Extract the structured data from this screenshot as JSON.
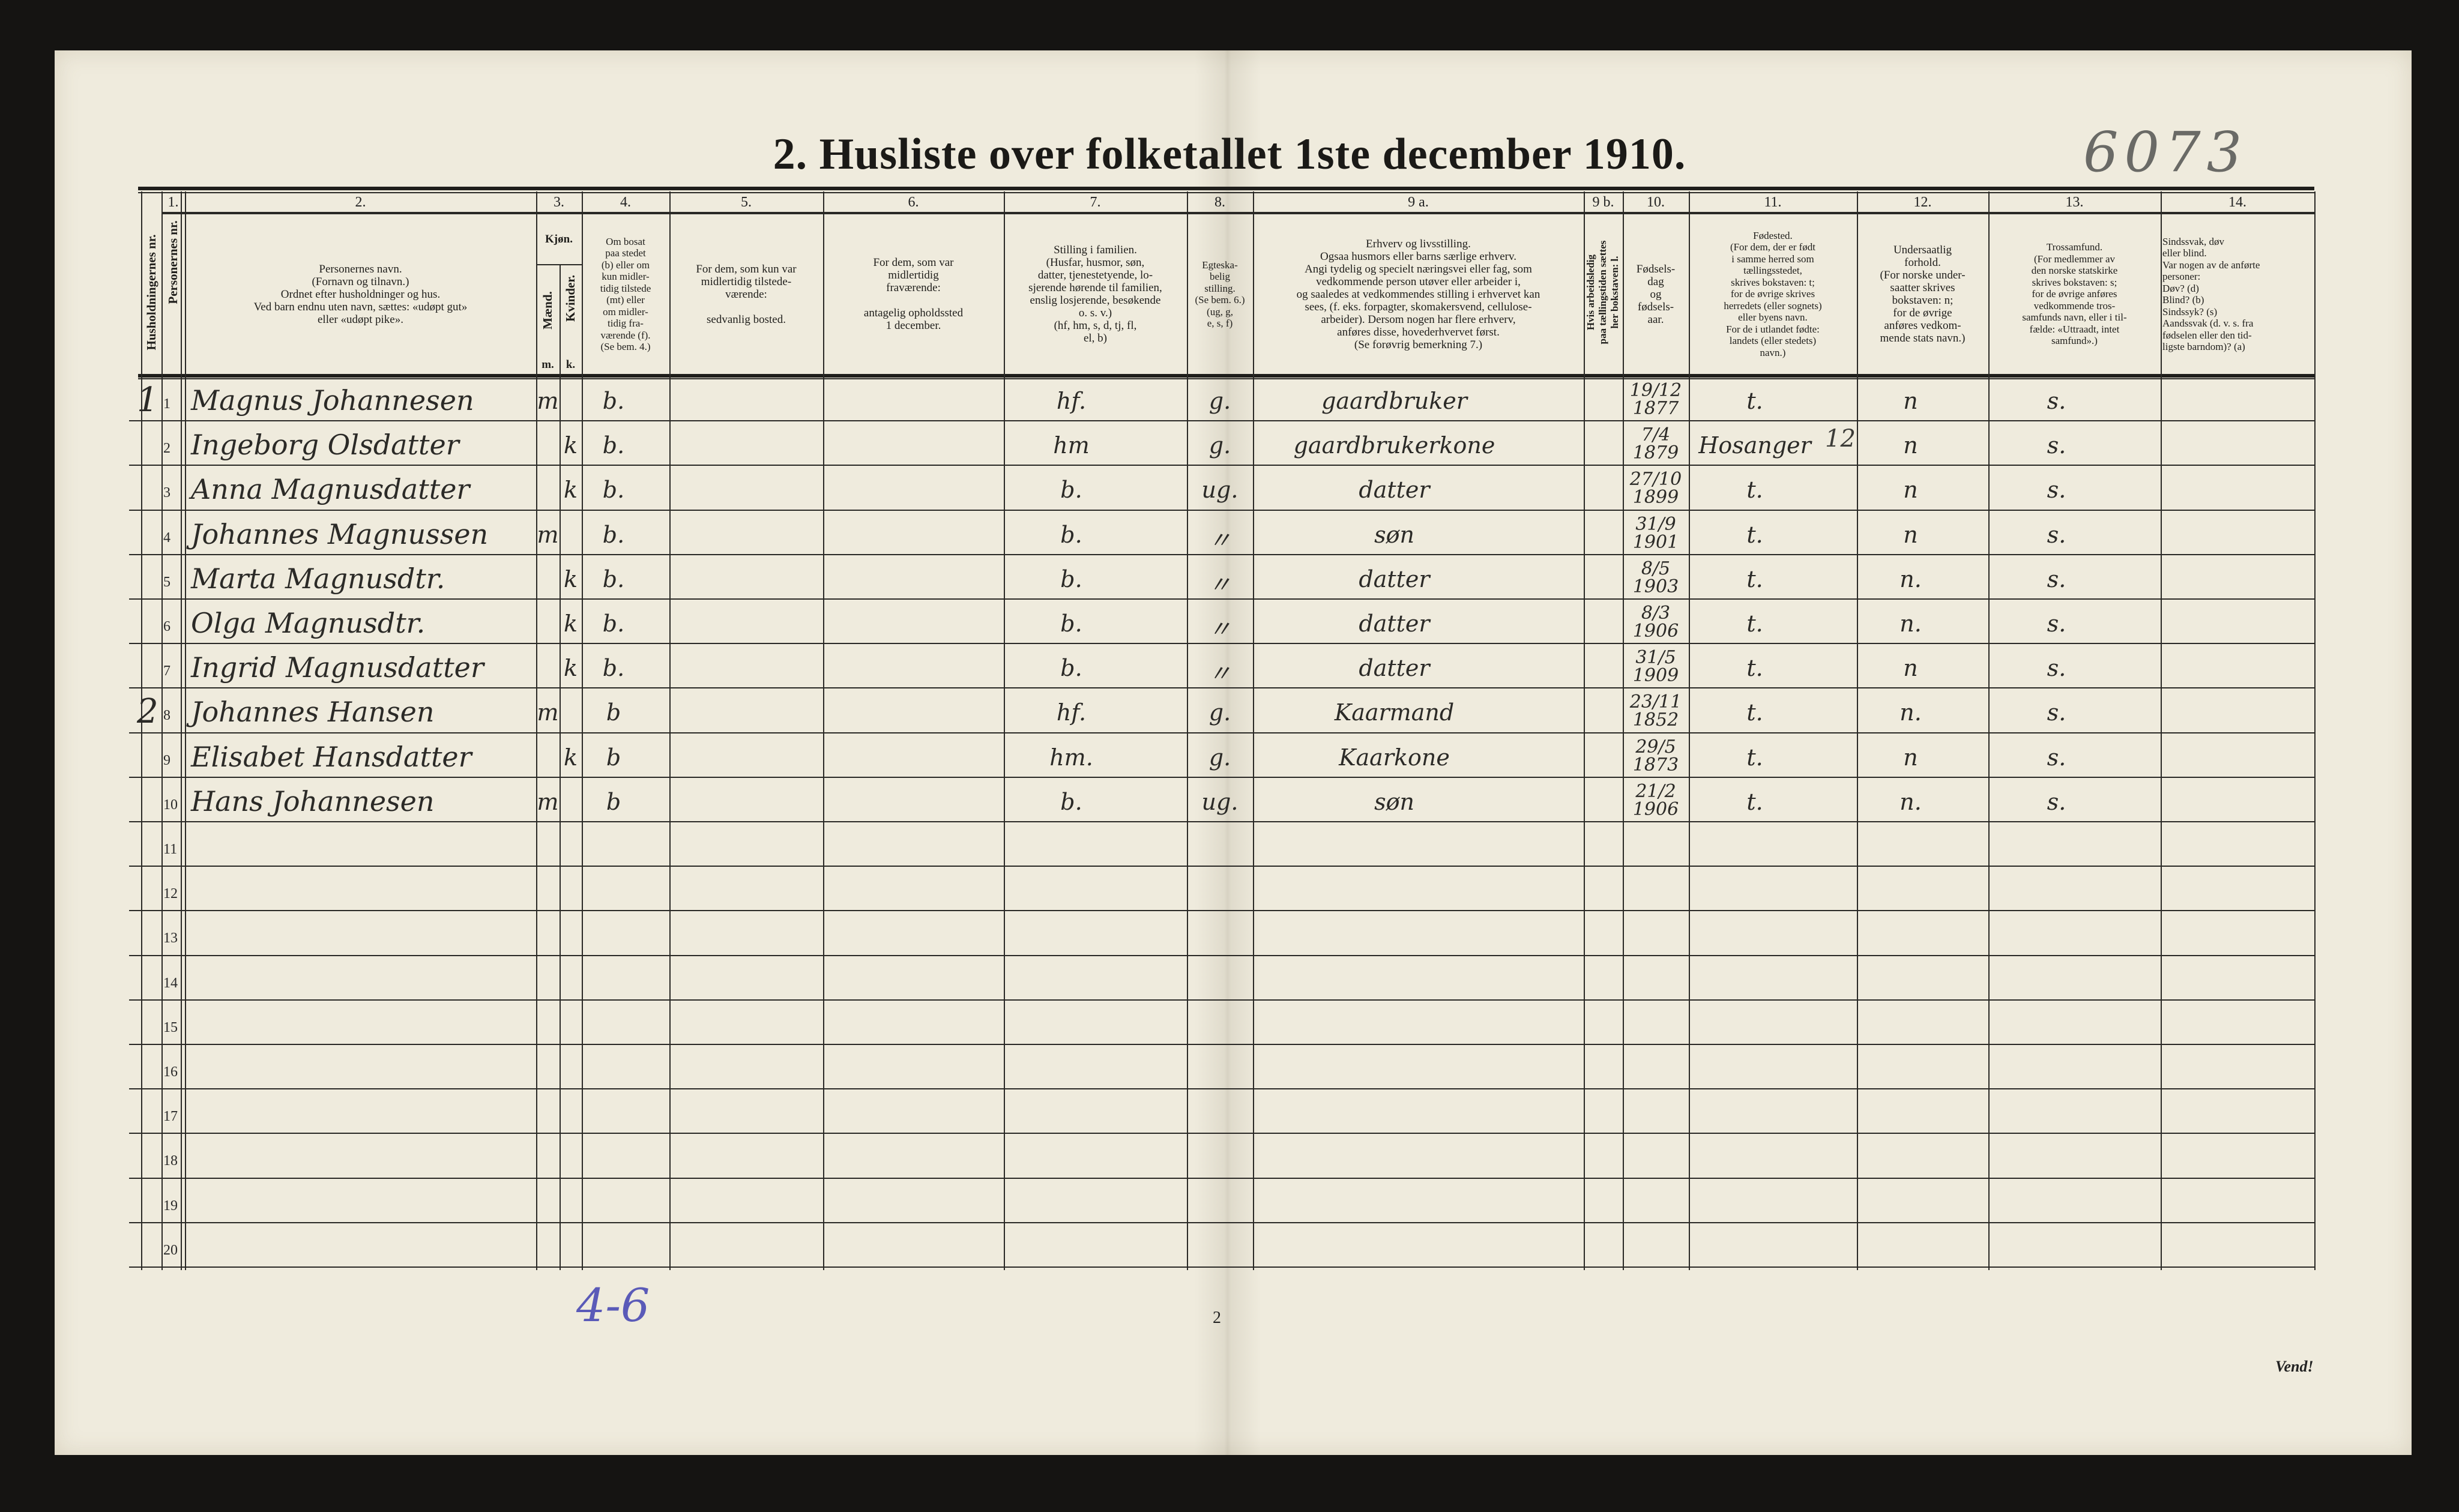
{
  "form": {
    "title": "2.  Husliste over folketallet 1ste december 1910.",
    "archive_number": "6073",
    "page_number": "2",
    "turn_over": "Vend!",
    "margin_note": "4-6",
    "paper_color": "#efebdd"
  },
  "columns": {
    "numbers": [
      "1.",
      "2.",
      "3.",
      "4.",
      "5.",
      "6.",
      "7.",
      "8.",
      "9 a.",
      "9 b.",
      "10.",
      "11.",
      "12.",
      "13.",
      "14."
    ],
    "household_nr": "Husholdningernes nr.",
    "person_nr": "Personernes nr.",
    "name": "Personernes navn.\n(Fornavn og tilnavn.)\nOrdnet efter husholdninger og hus.\nVed barn endnu uten navn, sættes: «udøpt gut»\neller «udøpt pike».",
    "sex": "Kjøn.",
    "male": "Mænd.",
    "female": "Kvinder.",
    "male_abbr": "m.",
    "female_abbr": "k.",
    "residence": "Om bosat\npaa stedet\n(b) eller om\nkun midler-\ntidig tilstede\n(mt) eller\nom midler-\ntidig fra-\nværende (f).\n(Se bem. 4.)",
    "temp_present": "For dem, som kun var\nmidlertidig tilstede-\nværende:\n\nsedvanlig bosted.",
    "temp_absent": "For dem, som var\nmidlertidig\nfraværende:\n\nantagelig opholdssted\n1 december.",
    "family_position": "Stilling i familien.\n(Husfar, husmor, søn,\ndatter, tjenestetyende, lo-\nsjerende hørende til familien,\nenslig losjerende, besøkende\no. s. v.)\n(hf, hm, s, d, tj, fl,\nel, b)",
    "marital": "Egteska-\nbelig\nstilling.\n(Se bem. 6.)\n(ug, g,\ne, s, f)",
    "occupation": "Erhverv og livsstilling.\nOgsaa husmors eller barns særlige erhverv.\nAngi tydelig og specielt næringsvei eller fag, som\nvedkommende person utøver eller arbeider i,\nog saaledes at vedkommendes stilling i erhvervet kan\nsees, (f. eks. forpagter, skomakersvend, cellulose-\narbeider). Dersom nogen har flere erhverv,\nanføres disse, hovederhvervet først.\n(Se forøvrig bemerkning 7.)",
    "unemployed": "Hvis arbeidsledig\npaa tællingstiden sættes\nher bokstaven: l.",
    "birth_date": "Fødsels-\ndag\nog\nfødsels-\naar.",
    "birthplace": "Fødested.\n(For dem, der er født\ni samme herred som\ntællingsstedet,\nskrives bokstaven: t;\nfor de øvrige skrives\nherredets (eller sognets)\neller byens navn.\nFor de i utlandet fødte:\nlandets (eller stedets)\nnavn.)",
    "citizenship": "Undersaatlig\nforhold.\n(For norske under-\nsaatter skrives\nbokstaven: n;\nfor de øvrige\nanføres vedkom-\nmende stats navn.)",
    "religion": "Trossamfund.\n(For medlemmer av\nden norske statskirke\nskrives bokstaven: s;\nfor de øvrige anføres\nvedkommende tros-\nsamfunds navn, eller i til-\nfælde: «Uttraadt, intet\nsamfund».)",
    "disability": "Sindssvak, døv\neller blind.\nVar nogen av de anførte\npersoner:\nDøv?          (d)\nBlind?        (b)\nSindssyk?   (s)\nAandssvak (d. v. s. fra\nfødselen eller den tid-\nligste barndom)? (a)"
  },
  "row_numbers": [
    "1",
    "2",
    "3",
    "4",
    "5",
    "6",
    "7",
    "8",
    "9",
    "10",
    "11",
    "12",
    "13",
    "14",
    "15",
    "16",
    "17",
    "18",
    "19",
    "20"
  ],
  "persons": [
    {
      "household": "1",
      "name": "Magnus Johannesen",
      "male": "m",
      "female": "",
      "residence": "b.",
      "position": "hf.",
      "marital": "g.",
      "occupation": "gaardbruker",
      "birth": "19/12\n1877",
      "birthplace": "t.",
      "citizenship": "n",
      "religion": "s."
    },
    {
      "household": "",
      "name": "Ingeborg Olsdatter",
      "male": "",
      "female": "k",
      "residence": "b.",
      "position": "hm",
      "marital": "g.",
      "occupation": "gaardbrukerkone",
      "birth": "7/4\n1879",
      "birthplace": "Hosanger",
      "citizenship": "n",
      "religion": "s."
    },
    {
      "household": "",
      "name": "Anna Magnusdatter",
      "male": "",
      "female": "k",
      "residence": "b.",
      "position": "b.",
      "marital": "ug.",
      "occupation": "datter",
      "birth": "27/10\n1899",
      "birthplace": "t.",
      "citizenship": "n",
      "religion": "s."
    },
    {
      "household": "",
      "name": "Johannes Magnussen",
      "male": "m",
      "female": "",
      "residence": "b.",
      "position": "b.",
      "marital": "〃",
      "occupation": "søn",
      "birth": "31/9\n1901",
      "birthplace": "t.",
      "citizenship": "n",
      "religion": "s."
    },
    {
      "household": "",
      "name": "Marta Magnusdtr.",
      "male": "",
      "female": "k",
      "residence": "b.",
      "position": "b.",
      "marital": "〃",
      "occupation": "datter",
      "birth": "8/5\n1903",
      "birthplace": "t.",
      "citizenship": "n.",
      "religion": "s."
    },
    {
      "household": "",
      "name": "Olga Magnusdtr.",
      "male": "",
      "female": "k",
      "residence": "b.",
      "position": "b.",
      "marital": "〃",
      "occupation": "datter",
      "birth": "8/3\n1906",
      "birthplace": "t.",
      "citizenship": "n.",
      "religion": "s."
    },
    {
      "household": "",
      "name": "Ingrid Magnusdatter",
      "male": "",
      "female": "k",
      "residence": "b.",
      "position": "b.",
      "marital": "〃",
      "occupation": "datter",
      "birth": "31/5\n1909",
      "birthplace": "t.",
      "citizenship": "n",
      "religion": "s."
    },
    {
      "household": "2",
      "name": "Johannes Hansen",
      "male": "m",
      "female": "",
      "residence": "b",
      "position": "hf.",
      "marital": "g.",
      "occupation": "Kaarmand",
      "birth": "23/11\n1852",
      "birthplace": "t.",
      "citizenship": "n.",
      "religion": "s."
    },
    {
      "household": "",
      "name": "Elisabet Hansdatter",
      "male": "",
      "female": "k",
      "residence": "b",
      "position": "hm.",
      "marital": "g.",
      "occupation": "Kaarkone",
      "birth": "29/5\n1873",
      "birthplace": "t.",
      "citizenship": "n",
      "religion": "s."
    },
    {
      "household": "",
      "name": "Hans Johannesen",
      "male": "m",
      "female": "",
      "residence": "b",
      "position": "b.",
      "marital": "ug.",
      "occupation": "søn",
      "birth": "21/2\n1906",
      "birthplace": "t.",
      "citizenship": "n.",
      "religion": "s."
    }
  ],
  "annotations": {
    "birthplace_row2_mark": "12"
  }
}
